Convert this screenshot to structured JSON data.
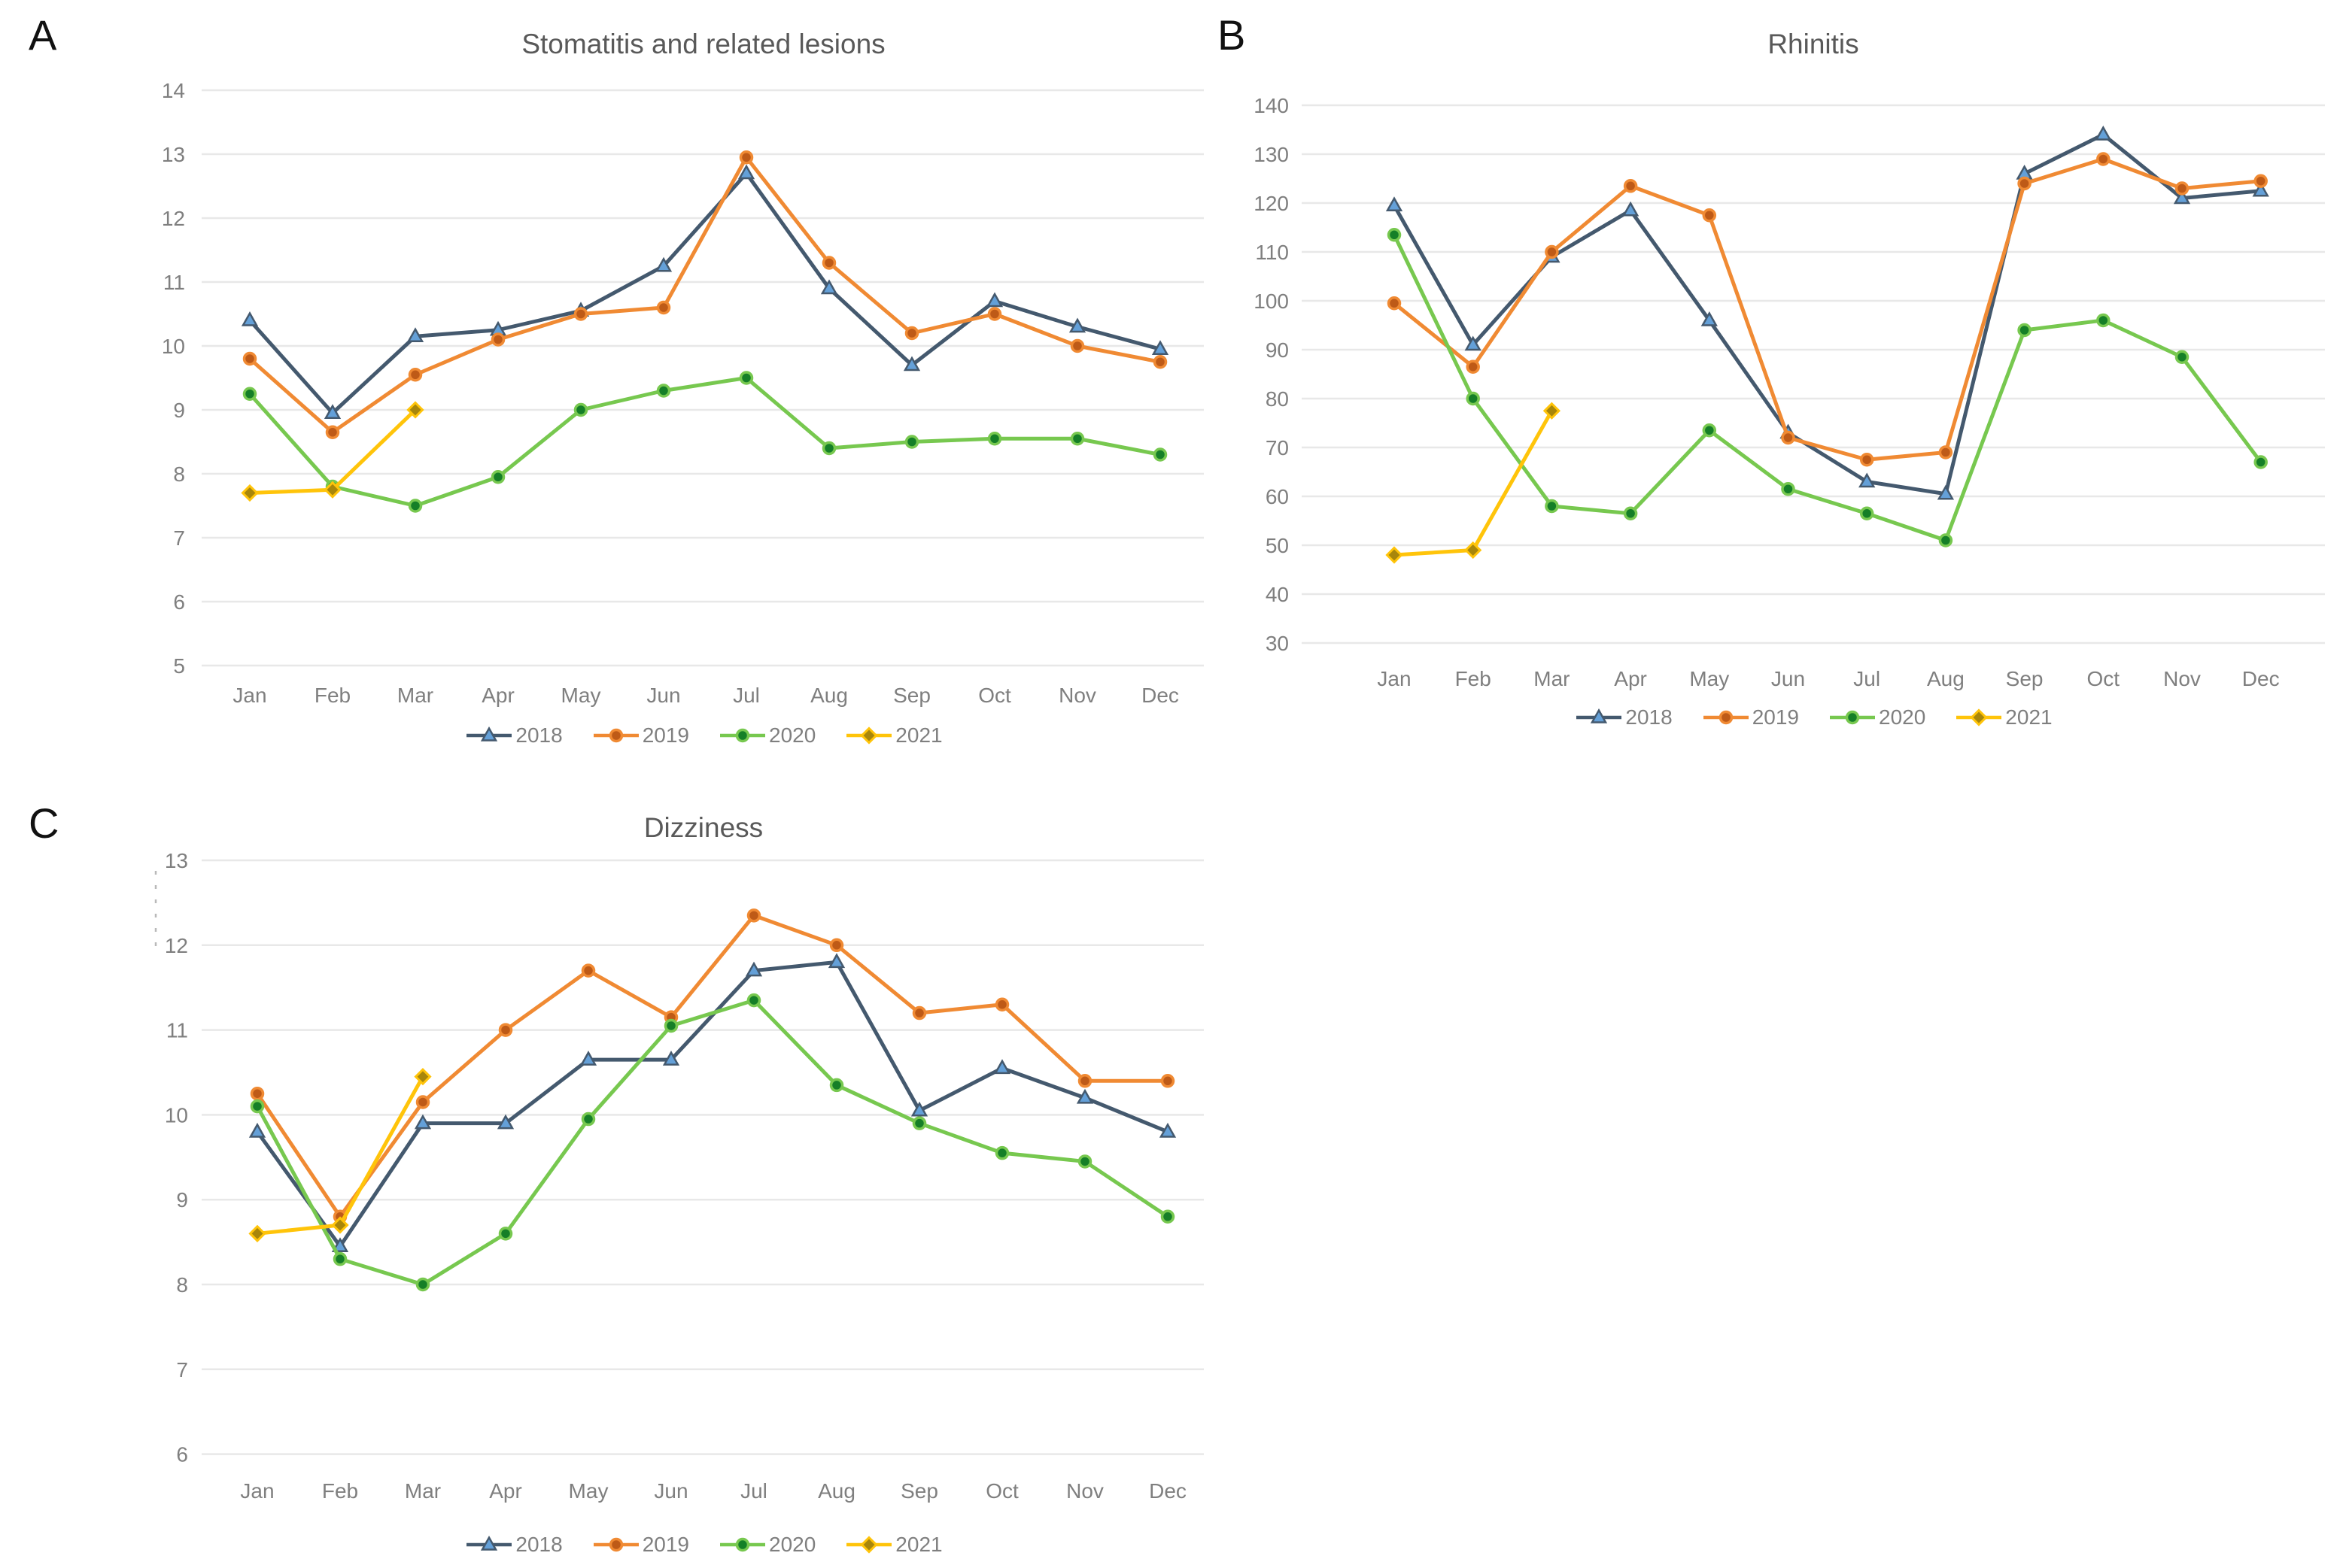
{
  "panels": [
    {
      "letter": "A"
    },
    {
      "letter": "B"
    },
    {
      "letter": "C"
    }
  ],
  "months": [
    "Jan",
    "Feb",
    "Mar",
    "Apr",
    "May",
    "Jun",
    "Jul",
    "Aug",
    "Sep",
    "Oct",
    "Nov",
    "Dec"
  ],
  "colors": {
    "grid": "#e8e8e8",
    "tick_text": "#7f7f7f",
    "title_text": "#595959"
  },
  "chart_data": [
    {
      "type": "line",
      "title": "Stomatitis and related lesions",
      "xlabel": "",
      "ylabel": "",
      "ylim": [
        5,
        14
      ],
      "ytick_step": 1,
      "grid": true,
      "legend_position": "bottom",
      "categories": [
        "Jan",
        "Feb",
        "Mar",
        "Apr",
        "May",
        "Jun",
        "Jul",
        "Aug",
        "Sep",
        "Oct",
        "Nov",
        "Dec"
      ],
      "series": [
        {
          "name": "2018",
          "marker": "triangle",
          "line_color": "#44596e",
          "marker_color": "#64a0d8",
          "values": [
            10.4,
            8.95,
            10.15,
            10.25,
            10.55,
            11.25,
            12.7,
            10.9,
            9.7,
            10.7,
            10.3,
            9.95
          ]
        },
        {
          "name": "2019",
          "marker": "circle",
          "line_color": "#f08a33",
          "marker_color": "#be5a17",
          "values": [
            9.8,
            8.65,
            9.55,
            10.1,
            10.5,
            10.6,
            12.95,
            11.3,
            10.2,
            10.5,
            10.0,
            9.75
          ]
        },
        {
          "name": "2020",
          "marker": "circle",
          "line_color": "#77c84f",
          "marker_color": "#157f27",
          "values": [
            9.25,
            7.8,
            7.5,
            7.95,
            9.0,
            9.3,
            9.5,
            8.4,
            8.5,
            8.55,
            8.55,
            8.3
          ]
        },
        {
          "name": "2021",
          "marker": "diamond",
          "line_color": "#ffc40a",
          "marker_color": "#a8860b",
          "values": [
            7.7,
            7.75,
            9.0
          ]
        }
      ]
    },
    {
      "type": "line",
      "title": "Rhinitis",
      "xlabel": "",
      "ylabel": "",
      "ylim": [
        30,
        140
      ],
      "ytick_step": 10,
      "grid": true,
      "legend_position": "bottom",
      "categories": [
        "Jan",
        "Feb",
        "Mar",
        "Apr",
        "May",
        "Jun",
        "Jul",
        "Aug",
        "Sep",
        "Oct",
        "Nov",
        "Dec"
      ],
      "series": [
        {
          "name": "2018",
          "marker": "triangle",
          "line_color": "#44596e",
          "marker_color": "#64a0d8",
          "values": [
            119.5,
            91,
            109,
            118.5,
            96,
            73,
            63,
            60.5,
            126,
            134,
            121,
            122.5
          ]
        },
        {
          "name": "2019",
          "marker": "circle",
          "line_color": "#f08a33",
          "marker_color": "#be5a17",
          "values": [
            99.5,
            86.5,
            110,
            123.5,
            117.5,
            72,
            67.5,
            69,
            124,
            129,
            123,
            124.5
          ]
        },
        {
          "name": "2020",
          "marker": "circle",
          "line_color": "#77c84f",
          "marker_color": "#157f27",
          "values": [
            113.5,
            80,
            58,
            56.5,
            73.5,
            61.5,
            56.5,
            51,
            94,
            96,
            88.5,
            67
          ]
        },
        {
          "name": "2021",
          "marker": "diamond",
          "line_color": "#ffc40a",
          "marker_color": "#a8860b",
          "values": [
            48,
            49,
            77.5
          ]
        }
      ]
    },
    {
      "type": "line",
      "title": "Dizziness",
      "xlabel": "",
      "ylabel": "",
      "ylim": [
        6,
        13
      ],
      "ytick_step": 1,
      "grid": true,
      "legend_position": "bottom",
      "categories": [
        "Jan",
        "Feb",
        "Mar",
        "Apr",
        "May",
        "Jun",
        "Jul",
        "Aug",
        "Sep",
        "Oct",
        "Nov",
        "Dec"
      ],
      "series": [
        {
          "name": "2018",
          "marker": "triangle",
          "line_color": "#44596e",
          "marker_color": "#64a0d8",
          "values": [
            9.8,
            8.45,
            9.9,
            9.9,
            10.65,
            10.65,
            11.7,
            11.8,
            10.05,
            10.55,
            10.2,
            9.8
          ]
        },
        {
          "name": "2019",
          "marker": "circle",
          "line_color": "#f08a33",
          "marker_color": "#be5a17",
          "values": [
            10.25,
            8.8,
            10.15,
            11.0,
            11.7,
            11.15,
            12.35,
            12.0,
            11.2,
            11.3,
            10.4,
            10.4
          ]
        },
        {
          "name": "2020",
          "marker": "circle",
          "line_color": "#77c84f",
          "marker_color": "#157f27",
          "values": [
            10.1,
            8.3,
            8.0,
            8.6,
            9.95,
            11.05,
            11.35,
            10.35,
            9.9,
            9.55,
            9.45,
            8.8
          ]
        },
        {
          "name": "2021",
          "marker": "diamond",
          "line_color": "#ffc40a",
          "marker_color": "#a8860b",
          "values": [
            8.6,
            8.7,
            10.45
          ]
        }
      ]
    }
  ]
}
